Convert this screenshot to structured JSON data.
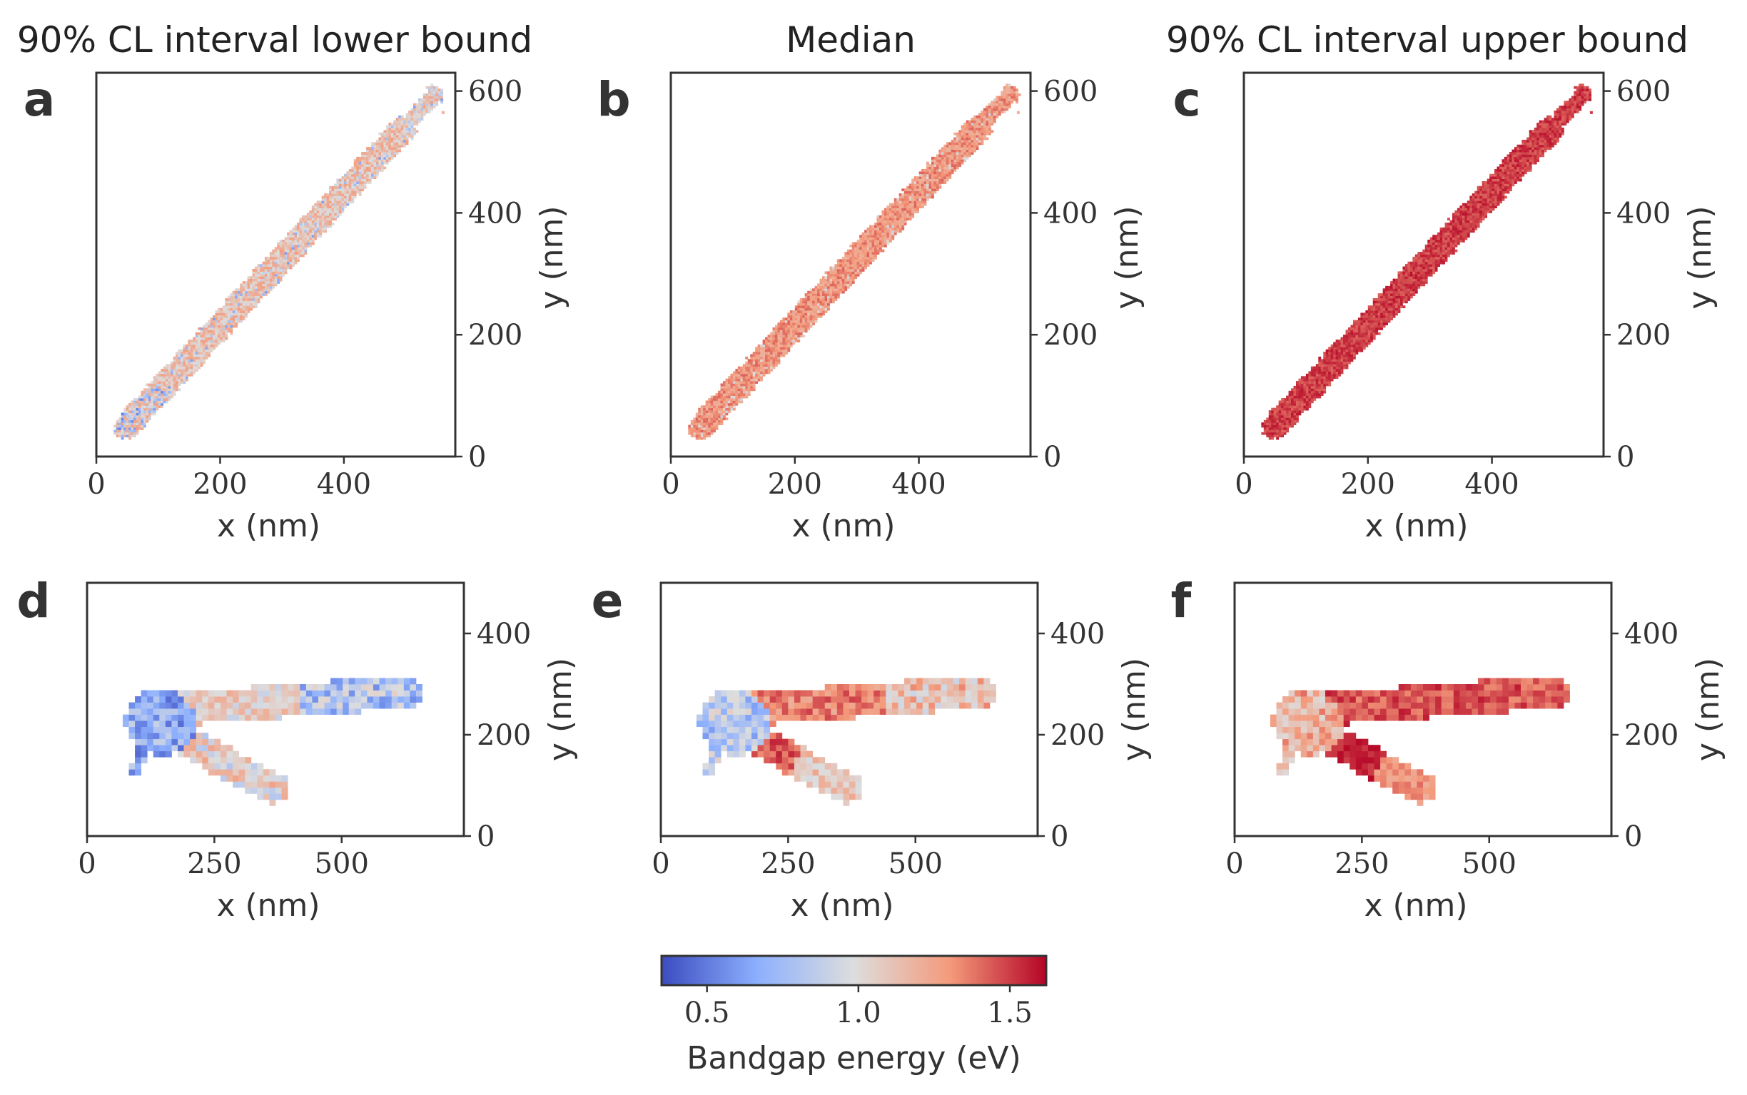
{
  "column_titles": [
    "90% CL interval lower bound",
    "Median",
    "90% CL interval upper bound"
  ],
  "panel_letters": [
    "a",
    "b",
    "c",
    "d",
    "e",
    "f"
  ],
  "axis_labels": {
    "x": "x (nm)",
    "y": "y (nm)"
  },
  "colorbar": {
    "label": "Bandgap energy (eV)",
    "range": [
      0.35,
      1.62
    ],
    "ticks": [
      0.5,
      1.0,
      1.5
    ],
    "tick_labels": [
      "0.5",
      "1.0",
      "1.5"
    ],
    "colormap": "coolwarm",
    "colors": [
      "#3b4cc0",
      "#8db0fe",
      "#dddddd",
      "#f49a7b",
      "#b40426"
    ]
  },
  "chart_data": [
    {
      "type": "heatmap",
      "panel": "a",
      "row": "top",
      "statistic": "lower bound",
      "xlim": [
        0,
        580
      ],
      "ylim": [
        0,
        630
      ],
      "xticks": [
        0,
        200,
        400
      ],
      "xtick_labels": [
        "0",
        "200",
        "400"
      ],
      "yticks": [
        0,
        200,
        400,
        600
      ],
      "ytick_labels": [
        "0",
        "200",
        "400",
        "600"
      ],
      "y_axis_side": "right",
      "shape": "diagonal rod from (45,45) to (545,595), width ~45 nm",
      "value_range_approx": [
        0.4,
        1.35
      ],
      "typical_value": 1.15
    },
    {
      "type": "heatmap",
      "panel": "b",
      "row": "top",
      "statistic": "median",
      "xlim": [
        0,
        580
      ],
      "ylim": [
        0,
        630
      ],
      "xticks": [
        0,
        200,
        400
      ],
      "xtick_labels": [
        "0",
        "200",
        "400"
      ],
      "yticks": [
        0,
        200,
        400,
        600
      ],
      "ytick_labels": [
        "0",
        "200",
        "400",
        "600"
      ],
      "y_axis_side": "right",
      "shape": "diagonal rod from (45,45) to (545,595), width ~45 nm",
      "value_range_approx": [
        0.8,
        1.45
      ],
      "typical_value": 1.3
    },
    {
      "type": "heatmap",
      "panel": "c",
      "row": "top",
      "statistic": "upper bound",
      "xlim": [
        0,
        580
      ],
      "ylim": [
        0,
        630
      ],
      "xticks": [
        0,
        200,
        400
      ],
      "xtick_labels": [
        "0",
        "200",
        "400"
      ],
      "yticks": [
        0,
        200,
        400,
        600
      ],
      "ytick_labels": [
        "0",
        "200",
        "400",
        "600"
      ],
      "y_axis_side": "right",
      "shape": "diagonal rod from (45,45) to (545,595), width ~45 nm",
      "value_range_approx": [
        1.3,
        1.6
      ],
      "typical_value": 1.5
    },
    {
      "type": "heatmap",
      "panel": "d",
      "row": "bottom",
      "statistic": "lower bound",
      "xlim": [
        0,
        740
      ],
      "ylim": [
        0,
        500
      ],
      "xticks": [
        0,
        250,
        500
      ],
      "xtick_labels": [
        "0",
        "250",
        "500"
      ],
      "yticks": [
        0,
        200,
        400
      ],
      "ytick_labels": [
        "0",
        "200",
        "400"
      ],
      "y_axis_side": "right",
      "shape": "V-shaped flake: blob near (140,230), upper arm to (630,285), lower arm to (370,85)",
      "value_range_approx": [
        0.4,
        1.3
      ]
    },
    {
      "type": "heatmap",
      "panel": "e",
      "row": "bottom",
      "statistic": "median",
      "xlim": [
        0,
        740
      ],
      "ylim": [
        0,
        500
      ],
      "xticks": [
        0,
        250,
        500
      ],
      "xtick_labels": [
        "0",
        "250",
        "500"
      ],
      "yticks": [
        0,
        200,
        400
      ],
      "ytick_labels": [
        "0",
        "200",
        "400"
      ],
      "y_axis_side": "right",
      "shape": "V-shaped flake: blob near (140,230), upper arm to (630,285), lower arm to (370,85)",
      "value_range_approx": [
        0.5,
        1.6
      ]
    },
    {
      "type": "heatmap",
      "panel": "f",
      "row": "bottom",
      "statistic": "upper bound",
      "xlim": [
        0,
        740
      ],
      "ylim": [
        0,
        500
      ],
      "xticks": [
        0,
        250,
        500
      ],
      "xtick_labels": [
        "0",
        "250",
        "500"
      ],
      "yticks": [
        0,
        200,
        400
      ],
      "ytick_labels": [
        "0",
        "200",
        "400"
      ],
      "y_axis_side": "right",
      "shape": "V-shaped flake: blob near (140,230), upper arm to (630,285), lower arm to (370,85)",
      "value_range_approx": [
        1.0,
        1.62
      ]
    }
  ]
}
